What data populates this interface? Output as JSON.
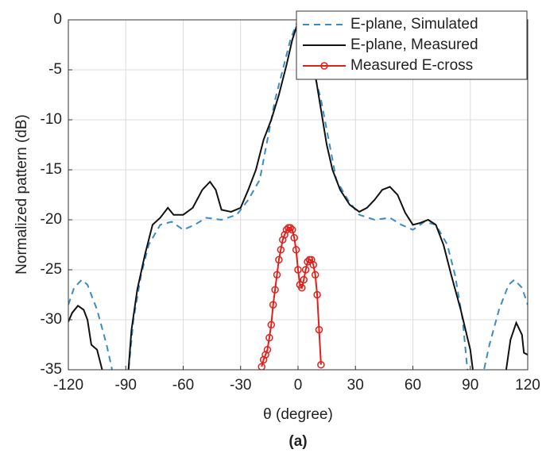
{
  "chart_data": {
    "type": "line",
    "caption": "(a)",
    "x_label": "θ (degree)",
    "y_label": "Normalized pattern (dB)",
    "xlim": [
      -120,
      120
    ],
    "ylim": [
      -35,
      0
    ],
    "xticks": [
      -120,
      -90,
      -60,
      -30,
      0,
      30,
      60,
      90,
      120
    ],
    "yticks": [
      0,
      -5,
      -10,
      -15,
      -20,
      -25,
      -30,
      -35
    ],
    "grid": true,
    "legend": "upper right",
    "series": [
      {
        "name": "E-plane, Simulated",
        "color": "#3b8cc4",
        "style": "dashed",
        "x": [
          -120,
          -117,
          -113,
          -110,
          -105,
          -100,
          -96,
          -92.5,
          -89,
          -86,
          -82,
          -78,
          -72,
          -66,
          -60,
          -54,
          -48,
          -40,
          -32,
          -26,
          -20,
          -16,
          -12,
          -8,
          -4,
          0,
          4,
          8,
          12,
          16,
          20,
          26,
          32,
          40,
          48,
          54,
          60,
          66,
          72,
          78,
          82,
          86,
          89,
          92.5,
          96,
          100,
          105,
          110,
          113,
          117,
          120
        ],
        "values": [
          -28.5,
          -26.8,
          -26,
          -26.5,
          -29,
          -32.5,
          -36,
          null,
          -36,
          -30,
          -25.5,
          -22.5,
          -20.5,
          -20.2,
          -21,
          -20.5,
          -19.8,
          -20,
          -19.5,
          -18,
          -16,
          -12,
          -8,
          -5,
          -2,
          0,
          -2,
          -5,
          -8,
          -12,
          -16,
          -18,
          -19.5,
          -20,
          -19.8,
          -20.5,
          -21,
          -20.2,
          -20.5,
          -22.5,
          -25.5,
          -30,
          -36,
          null,
          -36,
          -32.5,
          -29,
          -26.5,
          -26,
          -26.8,
          -28.5
        ]
      },
      {
        "name": "E-plane, Measured",
        "color": "#111111",
        "style": "solid",
        "x": [
          -120,
          -118,
          -115,
          -112,
          -110,
          -108,
          -105,
          -103,
          -101,
          -95,
          -89,
          -87,
          -84,
          -80,
          -76,
          -72,
          -68,
          -65,
          -60,
          -55,
          -50,
          -46,
          -43,
          -40,
          -35,
          -30,
          -26,
          -22,
          -18,
          -14,
          -10,
          -6,
          -3,
          0,
          3,
          6,
          9,
          12,
          15,
          18,
          22,
          27,
          32,
          36,
          40,
          44,
          48,
          52,
          56,
          60,
          64,
          68,
          72,
          76,
          80,
          85,
          90,
          92,
          100,
          108,
          111,
          114,
          117,
          118,
          120
        ],
        "values": [
          -30.2,
          -29.3,
          -28.6,
          -29,
          -30,
          -32.5,
          -33,
          -34.5,
          -36,
          null,
          -36,
          -31,
          -27,
          -23.5,
          -20.5,
          -19.8,
          -18.8,
          -19.5,
          -19.5,
          -18.8,
          -17,
          -16.2,
          -17,
          -19,
          -19.2,
          -18.8,
          -17,
          -15,
          -12,
          -10,
          -7.5,
          -4.5,
          -2,
          -0.2,
          -0.5,
          -2,
          -5.5,
          -9,
          -12.5,
          -15,
          -17,
          -18.5,
          -19.2,
          -18.8,
          -18,
          -17,
          -16.7,
          -17.5,
          -19.3,
          -20.5,
          -20.3,
          -20,
          -20.5,
          -22.5,
          -25.5,
          -29,
          -33,
          -36,
          null,
          -36,
          -32,
          -30.3,
          -31.5,
          -33.3,
          -33.5
        ]
      },
      {
        "name": "Measured E-cross",
        "color": "#e0201b",
        "style": "solid",
        "marker": "circle",
        "x": [
          -19,
          -18,
          -17,
          -16,
          -15,
          -14,
          -13,
          -12,
          -11,
          -10,
          -9,
          -8,
          -7,
          -6,
          -5,
          -4,
          -3,
          -2,
          -1,
          0,
          1,
          2,
          3,
          4,
          5,
          6,
          7,
          8,
          9,
          10,
          11,
          12
        ],
        "values": [
          -34.7,
          -34,
          -33.5,
          -33,
          -31.8,
          -30.5,
          -28.5,
          -27,
          -25.5,
          -24,
          -23,
          -22,
          -21.5,
          -21,
          -20.8,
          -20.8,
          -21,
          -21.8,
          -23,
          -25,
          -26.5,
          -26.8,
          -26,
          -25,
          -24.2,
          -24,
          -24,
          -24.5,
          -25.5,
          -27.5,
          -31,
          -34.5
        ]
      }
    ]
  }
}
